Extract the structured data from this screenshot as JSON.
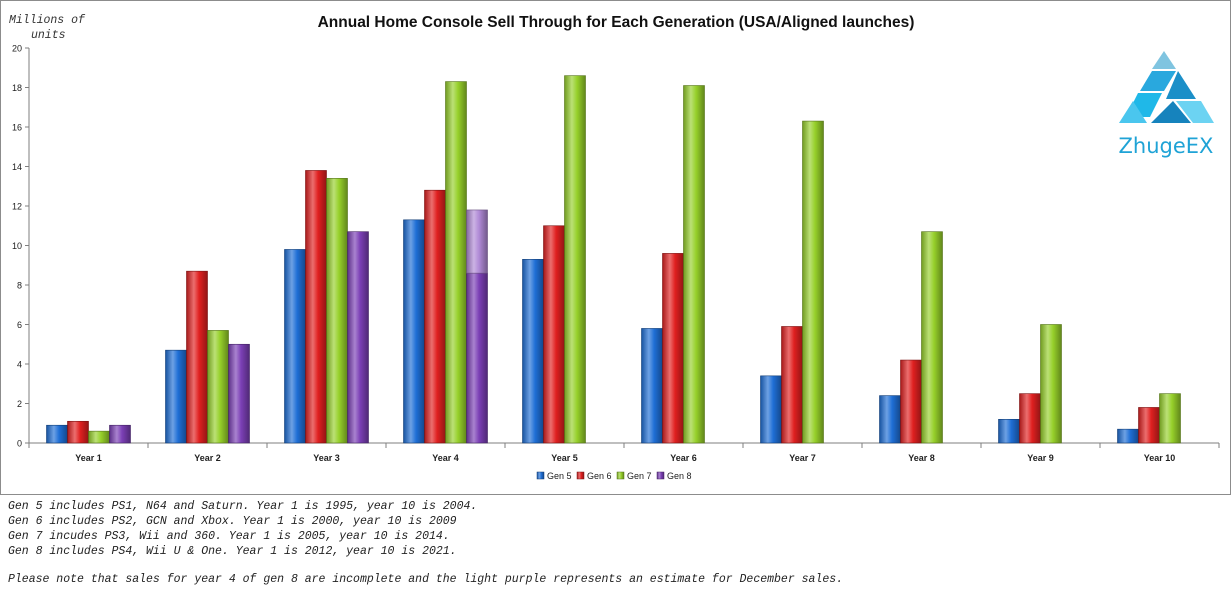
{
  "chart_data": {
    "type": "bar",
    "title": "Annual Home Console Sell Through for Each Generation (USA/Aligned launches)",
    "ylabel_line1": "Millions of",
    "ylabel_line2": "units",
    "ylim": [
      0,
      20
    ],
    "yticks": [
      "0",
      "2",
      "4",
      "6",
      "8",
      "10",
      "12",
      "14",
      "16",
      "18",
      "20"
    ],
    "grid": false,
    "legend_position": "bottom",
    "categories": [
      "Year 1",
      "Year 2",
      "Year 3",
      "Year 4",
      "Year 5",
      "Year 6",
      "Year 7",
      "Year 8",
      "Year 9",
      "Year 10"
    ],
    "series": [
      {
        "name": "Gen 5",
        "color": "#1f6fd6",
        "values": [
          0.9,
          4.7,
          9.8,
          11.3,
          9.3,
          5.8,
          3.4,
          2.4,
          1.2,
          0.7
        ]
      },
      {
        "name": "Gen 6",
        "color": "#e02020",
        "values": [
          1.1,
          8.7,
          13.8,
          12.8,
          11.0,
          9.6,
          5.9,
          4.2,
          2.5,
          1.8
        ]
      },
      {
        "name": "Gen 7",
        "color": "#96d02a",
        "values": [
          0.6,
          5.7,
          13.4,
          18.3,
          18.6,
          18.1,
          16.3,
          10.7,
          6.0,
          2.5
        ]
      },
      {
        "name": "Gen 8",
        "color": "#7b3fb5",
        "values": [
          0.9,
          5.0,
          10.7,
          8.6,
          null,
          null,
          null,
          null,
          null,
          null
        ]
      }
    ],
    "estimate": {
      "series": "Gen 8",
      "category": "Year 4",
      "base": 8.6,
      "top": 11.8,
      "color": "#b08ad6"
    }
  },
  "logo": {
    "text": "ZhugeEX",
    "color": "#1fa3d6"
  },
  "notes": [
    "Gen 5 includes PS1, N64 and Saturn. Year 1 is 1995, year 10 is 2004.",
    "Gen 6 includes PS2, GCN and Xbox. Year 1 is 2000, year 10 is 2009",
    "Gen 7 incudes PS3, Wii and 360. Year 1 is 2005, year 10 is 2014.",
    "Gen 8 includes PS4, Wii U & One. Year 1 is 2012, year 10 is 2021."
  ],
  "footnote": "Please note that sales for year 4 of gen 8 are incomplete and the light purple represents an estimate for December sales."
}
